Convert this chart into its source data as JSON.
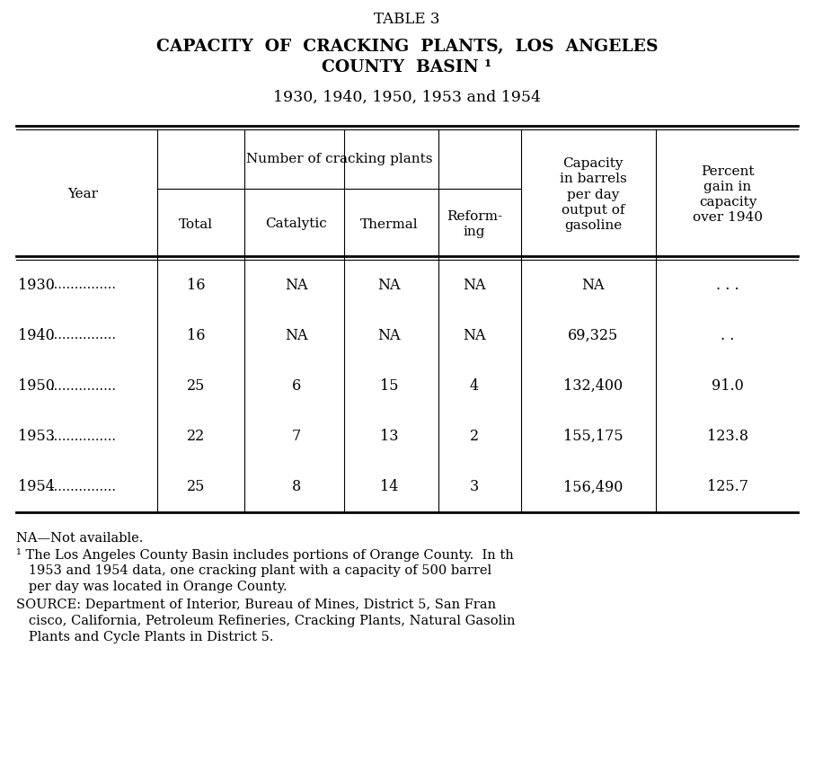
{
  "title1": "TABLE 3",
  "title2a": "CAPACITY  OF  CRACKING  PLANTS,  LOS  ANGELES",
  "title2b": "COUNTY  BASIN ¹",
  "title3": "1930, 1940, 1950, 1953 and 1954",
  "col_header_year": "Year",
  "col_header_group": "Number of cracking plants",
  "col_header_total": "Total",
  "col_header_catalytic": "Catalytic",
  "col_header_thermal": "Thermal",
  "col_header_reforming": "Reform-\ning",
  "col_header_capacity": "Capacity\nin barrels\nper day\noutput of\ngasoline",
  "col_header_percent": "Percent\ngain in\ncapacity\nover 1940",
  "rows": [
    {
      "year": "1930",
      "dashes": "................",
      "total": "16",
      "catalytic": "NA",
      "thermal": "NA",
      "reforming": "NA",
      "capacity": "NA",
      "percent": ". . ."
    },
    {
      "year": "1940",
      "dashes": "................",
      "total": "16",
      "catalytic": "NA",
      "thermal": "NA",
      "reforming": "NA",
      "capacity": "69,325",
      "percent": ". ."
    },
    {
      "year": "1950",
      "dashes": "................",
      "total": "25",
      "catalytic": "6",
      "thermal": "15",
      "reforming": "4",
      "capacity": "132,400",
      "percent": "91.0"
    },
    {
      "year": "1953",
      "dashes": "................",
      "total": "22",
      "catalytic": "7",
      "thermal": "13",
      "reforming": "2",
      "capacity": "155,175",
      "percent": "123.8"
    },
    {
      "year": "1954",
      "dashes": "................",
      "total": "25",
      "catalytic": "8",
      "thermal": "14",
      "reforming": "3",
      "capacity": "156,490",
      "percent": "125.7"
    }
  ],
  "footnote_na": "NA—Not available.",
  "footnote_1_line1": "¹ The Los Angeles County Basin includes portions of Orange County.  In th",
  "footnote_1_line2": "   1953 and 1954 data, one cracking plant with a capacity of 500 barrel",
  "footnote_1_line3": "   per day was located in Orange County.",
  "footnote_src_line1": "SOURCE: Department of Interior, Bureau of Mines, District 5, San Fran",
  "footnote_src_line2": "   cisco, California, Petroleum Refineries, Cracking Plants, Natural Gasolin",
  "footnote_src_line3": "   Plants and Cycle Plants in District 5.",
  "bg_color": "#ffffff",
  "text_color": "#000000",
  "fig_width": 9.06,
  "fig_height": 8.49,
  "dpi": 100
}
